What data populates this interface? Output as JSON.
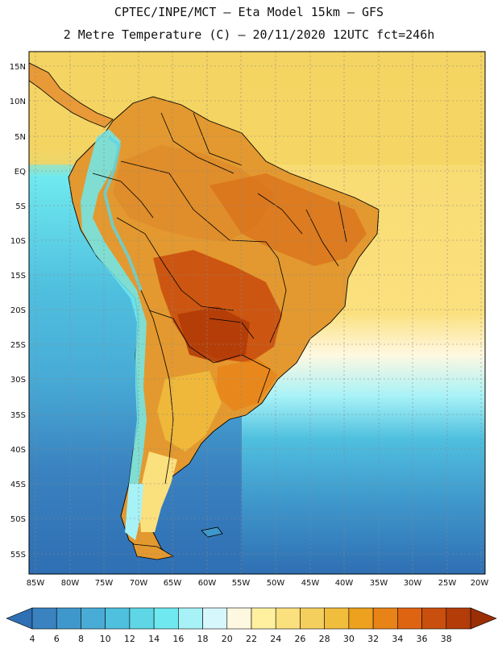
{
  "header": {
    "line1": "CPTEC/INPE/MCT –  Eta Model 15km – GFS",
    "line2": "2 Metre Temperature (C) – 20/11/2020 12UTC fct=246h"
  },
  "axes": {
    "lat_labels": [
      "15N",
      "10N",
      "5N",
      "EQ",
      "5S",
      "10S",
      "15S",
      "20S",
      "25S",
      "30S",
      "35S",
      "40S",
      "45S",
      "50S",
      "55S"
    ],
    "lon_labels": [
      "85W",
      "80W",
      "75W",
      "70W",
      "65W",
      "60W",
      "55W",
      "50W",
      "45W",
      "40W",
      "35W",
      "30W",
      "25W",
      "20W"
    ]
  },
  "colorbar": {
    "labels": [
      "4",
      "6",
      "8",
      "10",
      "12",
      "14",
      "16",
      "18",
      "20",
      "22",
      "24",
      "26",
      "28",
      "30",
      "32",
      "34",
      "36",
      "38"
    ],
    "colors": [
      "#2f6fb3",
      "#3a82c0",
      "#3f98cc",
      "#48acd6",
      "#50c0df",
      "#5ed6e6",
      "#6fe9ef",
      "#a7f2f7",
      "#d6f7fb",
      "#fff8e1",
      "#fff0a0",
      "#fbe07e",
      "#f5cf5e",
      "#f1bd3d",
      "#eda11e",
      "#e88318",
      "#df6412",
      "#c94f0e",
      "#b33c08",
      "#9a2e05"
    ]
  },
  "palette": {
    "ocean_warm": "#f6d86a",
    "ocean_warm2": "#f1cf5c",
    "ocean_cool": "#5ed6e6",
    "ocean_cold": "#3a82c0",
    "land_hot": "#c94f0e",
    "land_warm": "#df8a2a"
  }
}
